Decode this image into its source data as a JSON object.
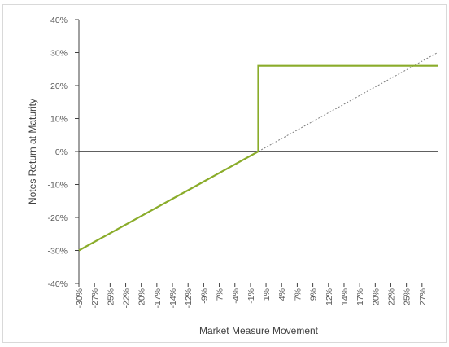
{
  "chart_data": {
    "type": "line",
    "xlabel": "Market Measure Movement",
    "ylabel": "Notes Return at Maturity",
    "xlim": [
      -30,
      30
    ],
    "ylim": [
      -40,
      40
    ],
    "xticks": [
      {
        "value": -30,
        "label": "-30%"
      },
      {
        "value": -27.39,
        "label": "-27%"
      },
      {
        "value": -24.78,
        "label": "-25%"
      },
      {
        "value": -22.17,
        "label": "-22%"
      },
      {
        "value": -19.57,
        "label": "-20%"
      },
      {
        "value": -16.96,
        "label": "-17%"
      },
      {
        "value": -14.35,
        "label": "-14%"
      },
      {
        "value": -11.74,
        "label": "-12%"
      },
      {
        "value": -9.13,
        "label": "-9%"
      },
      {
        "value": -6.52,
        "label": "-7%"
      },
      {
        "value": -3.91,
        "label": "-4%"
      },
      {
        "value": -1.3,
        "label": "-1%"
      },
      {
        "value": 1.3,
        "label": "1%"
      },
      {
        "value": 3.91,
        "label": "4%"
      },
      {
        "value": 6.52,
        "label": "7%"
      },
      {
        "value": 9.13,
        "label": "9%"
      },
      {
        "value": 11.74,
        "label": "12%"
      },
      {
        "value": 14.35,
        "label": "14%"
      },
      {
        "value": 16.96,
        "label": "17%"
      },
      {
        "value": 19.57,
        "label": "20%"
      },
      {
        "value": 22.17,
        "label": "22%"
      },
      {
        "value": 24.78,
        "label": "25%"
      },
      {
        "value": 27.39,
        "label": "27%"
      }
    ],
    "yticks": [
      {
        "value": -40,
        "label": "-40%"
      },
      {
        "value": -30,
        "label": "-30%"
      },
      {
        "value": -20,
        "label": "-20%"
      },
      {
        "value": -10,
        "label": "-10%"
      },
      {
        "value": 0,
        "label": "0%"
      },
      {
        "value": 10,
        "label": "10%"
      },
      {
        "value": 20,
        "label": "20%"
      },
      {
        "value": 30,
        "label": "30%"
      },
      {
        "value": 40,
        "label": "40%"
      }
    ],
    "series": [
      {
        "x": [
          -30,
          30
        ],
        "values": [
          -30,
          30
        ],
        "color": "#7f7f7f",
        "dashed": true
      },
      {
        "x": [
          -30,
          0,
          0,
          30
        ],
        "values": [
          -30,
          0,
          26,
          26
        ],
        "color": "#8aac2a",
        "dashed": false
      }
    ]
  }
}
